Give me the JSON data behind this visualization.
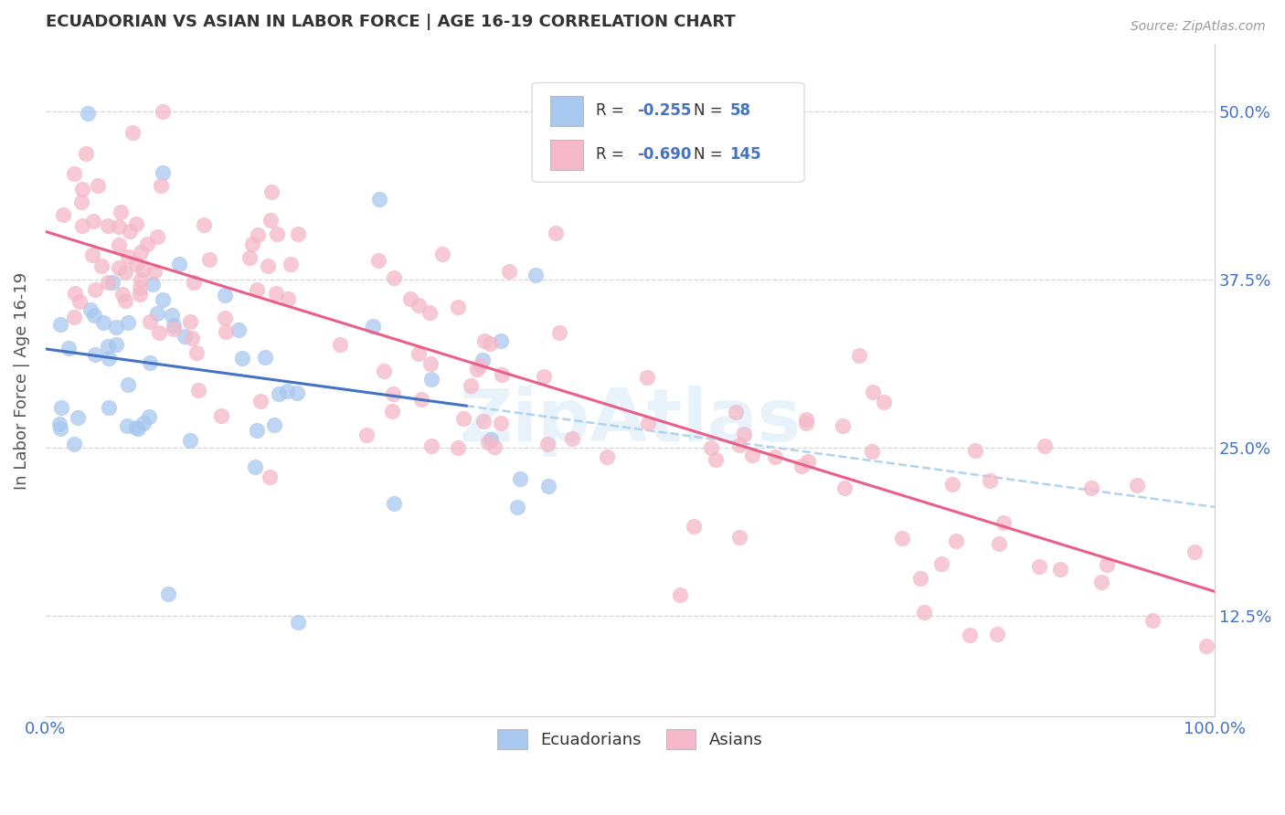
{
  "title": "ECUADORIAN VS ASIAN IN LABOR FORCE | AGE 16-19 CORRELATION CHART",
  "source_text": "Source: ZipAtlas.com",
  "ylabel": "In Labor Force | Age 16-19",
  "xlim": [
    0.0,
    1.0
  ],
  "ylim": [
    0.05,
    0.55
  ],
  "yticks": [
    0.125,
    0.25,
    0.375,
    0.5
  ],
  "ytick_labels": [
    "12.5%",
    "25.0%",
    "37.5%",
    "50.0%"
  ],
  "xticks": [
    0.0,
    1.0
  ],
  "xtick_labels": [
    "0.0%",
    "100.0%"
  ],
  "grid_color": "#cccccc",
  "background_color": "#ffffff",
  "ecuadorian_color": "#a8c8f0",
  "asian_color": "#f5b8c8",
  "ecuadorian_line_color": "#4472c4",
  "asian_line_color": "#e8608a",
  "ecuadorian_dash_color": "#b0d4f0",
  "R_ecu": -0.255,
  "N_ecu": 58,
  "R_asi": -0.69,
  "N_asi": 145,
  "label_color": "#4472c4",
  "watermark": "ZipAtlas",
  "tick_color": "#4472c4",
  "title_color": "#333333",
  "ylabel_color": "#555555"
}
